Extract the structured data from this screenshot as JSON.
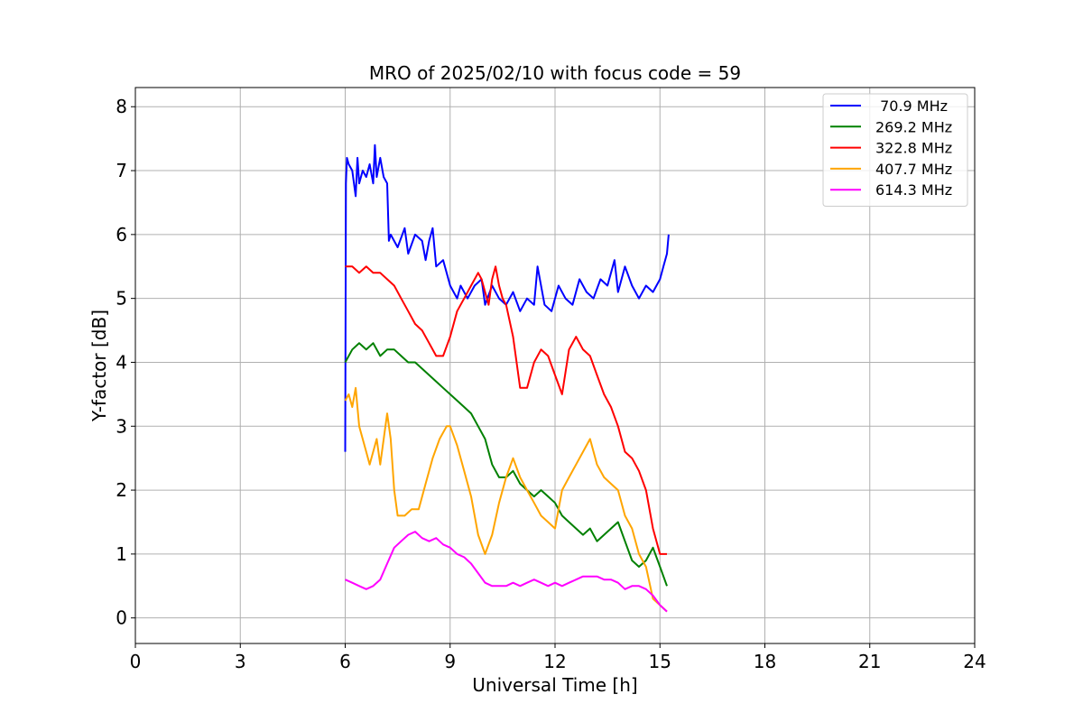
{
  "chart_data": {
    "type": "line",
    "title": "MRO of 2025/02/10 with focus code = 59",
    "xlabel": "Universal Time [h]",
    "ylabel": "Y-factor [dB]",
    "xlim": [
      0,
      24
    ],
    "ylim": [
      -0.4,
      8.3
    ],
    "xticks": [
      0,
      3,
      6,
      9,
      12,
      15,
      18,
      21,
      24
    ],
    "yticks": [
      0,
      1,
      2,
      3,
      4,
      5,
      6,
      7,
      8
    ],
    "grid": true,
    "legend_position": "top-right",
    "series": [
      {
        "name": " 70.9 MHz",
        "color": "#0000ff",
        "x": [
          6.0,
          6.02,
          6.05,
          6.1,
          6.2,
          6.3,
          6.35,
          6.4,
          6.5,
          6.6,
          6.7,
          6.8,
          6.85,
          6.9,
          7.0,
          7.1,
          7.2,
          7.25,
          7.3,
          7.5,
          7.7,
          7.8,
          8.0,
          8.2,
          8.3,
          8.4,
          8.5,
          8.6,
          8.8,
          9.0,
          9.2,
          9.3,
          9.5,
          9.7,
          9.9,
          10.0,
          10.2,
          10.4,
          10.6,
          10.8,
          11.0,
          11.2,
          11.4,
          11.5,
          11.7,
          11.9,
          12.1,
          12.3,
          12.5,
          12.7,
          12.9,
          13.1,
          13.3,
          13.5,
          13.7,
          13.8,
          14.0,
          14.2,
          14.4,
          14.6,
          14.8,
          15.0,
          15.1,
          15.2,
          15.25
        ],
        "y": [
          2.6,
          6.8,
          7.2,
          7.1,
          7.0,
          6.6,
          7.2,
          6.8,
          7.0,
          6.9,
          7.1,
          6.8,
          7.4,
          6.9,
          7.2,
          6.9,
          6.8,
          5.9,
          6.0,
          5.8,
          6.1,
          5.7,
          6.0,
          5.9,
          5.6,
          5.9,
          6.1,
          5.5,
          5.6,
          5.2,
          5.0,
          5.2,
          5.0,
          5.2,
          5.3,
          4.9,
          5.2,
          5.0,
          4.9,
          5.1,
          4.8,
          5.0,
          4.9,
          5.5,
          4.9,
          4.8,
          5.2,
          5.0,
          4.9,
          5.3,
          5.1,
          5.0,
          5.3,
          5.2,
          5.6,
          5.1,
          5.5,
          5.2,
          5.0,
          5.2,
          5.1,
          5.3,
          5.5,
          5.7,
          6.0
        ]
      },
      {
        "name": "269.2 MHz",
        "color": "#008000",
        "x": [
          6.0,
          6.2,
          6.4,
          6.6,
          6.8,
          7.0,
          7.2,
          7.4,
          7.6,
          7.8,
          8.0,
          8.2,
          8.4,
          8.6,
          8.8,
          9.0,
          9.2,
          9.4,
          9.6,
          9.8,
          10.0,
          10.2,
          10.4,
          10.6,
          10.8,
          11.0,
          11.2,
          11.4,
          11.6,
          11.8,
          12.0,
          12.2,
          12.4,
          12.6,
          12.8,
          13.0,
          13.2,
          13.4,
          13.6,
          13.8,
          14.0,
          14.2,
          14.4,
          14.6,
          14.8,
          15.0,
          15.2
        ],
        "y": [
          4.0,
          4.2,
          4.3,
          4.2,
          4.3,
          4.1,
          4.2,
          4.2,
          4.1,
          4.0,
          4.0,
          3.9,
          3.8,
          3.7,
          3.6,
          3.5,
          3.4,
          3.3,
          3.2,
          3.0,
          2.8,
          2.4,
          2.2,
          2.2,
          2.3,
          2.1,
          2.0,
          1.9,
          2.0,
          1.9,
          1.8,
          1.6,
          1.5,
          1.4,
          1.3,
          1.4,
          1.2,
          1.3,
          1.4,
          1.5,
          1.2,
          0.9,
          0.8,
          0.9,
          1.1,
          0.8,
          0.5
        ]
      },
      {
        "name": "322.8 MHz",
        "color": "#ff0000",
        "x": [
          6.0,
          6.2,
          6.4,
          6.6,
          6.8,
          7.0,
          7.2,
          7.4,
          7.6,
          7.8,
          8.0,
          8.2,
          8.4,
          8.6,
          8.8,
          9.0,
          9.2,
          9.4,
          9.6,
          9.8,
          9.9,
          10.0,
          10.1,
          10.2,
          10.3,
          10.4,
          10.5,
          10.6,
          10.8,
          11.0,
          11.2,
          11.4,
          11.6,
          11.8,
          12.0,
          12.2,
          12.4,
          12.6,
          12.8,
          13.0,
          13.2,
          13.4,
          13.6,
          13.8,
          14.0,
          14.2,
          14.4,
          14.6,
          14.8,
          15.0,
          15.2
        ],
        "y": [
          5.5,
          5.5,
          5.4,
          5.5,
          5.4,
          5.4,
          5.3,
          5.2,
          5.0,
          4.8,
          4.6,
          4.5,
          4.3,
          4.1,
          4.1,
          4.4,
          4.8,
          5.0,
          5.2,
          5.4,
          5.3,
          5.1,
          4.9,
          5.3,
          5.5,
          5.2,
          5.0,
          4.9,
          4.4,
          3.6,
          3.6,
          4.0,
          4.2,
          4.1,
          3.8,
          3.5,
          4.2,
          4.4,
          4.2,
          4.1,
          3.8,
          3.5,
          3.3,
          3.0,
          2.6,
          2.5,
          2.3,
          2.0,
          1.4,
          1.0,
          1.0
        ]
      },
      {
        "name": "407.7 MHz",
        "color": "#ffa500",
        "x": [
          6.0,
          6.1,
          6.2,
          6.3,
          6.4,
          6.6,
          6.7,
          6.9,
          7.0,
          7.2,
          7.3,
          7.4,
          7.5,
          7.7,
          7.9,
          8.1,
          8.3,
          8.5,
          8.7,
          8.9,
          9.0,
          9.2,
          9.4,
          9.6,
          9.8,
          10.0,
          10.2,
          10.4,
          10.6,
          10.8,
          11.0,
          11.2,
          11.4,
          11.6,
          11.8,
          12.0,
          12.2,
          12.4,
          12.6,
          12.8,
          13.0,
          13.2,
          13.4,
          13.6,
          13.8,
          14.0,
          14.2,
          14.4,
          14.6,
          14.8,
          15.0,
          15.2
        ],
        "y": [
          3.4,
          3.5,
          3.3,
          3.6,
          3.0,
          2.6,
          2.4,
          2.8,
          2.4,
          3.2,
          2.8,
          2.0,
          1.6,
          1.6,
          1.7,
          1.7,
          2.1,
          2.5,
          2.8,
          3.0,
          3.0,
          2.7,
          2.3,
          1.9,
          1.3,
          1.0,
          1.3,
          1.8,
          2.2,
          2.5,
          2.2,
          2.0,
          1.8,
          1.6,
          1.5,
          1.4,
          2.0,
          2.2,
          2.4,
          2.6,
          2.8,
          2.4,
          2.2,
          2.1,
          2.0,
          1.6,
          1.4,
          1.0,
          0.8,
          0.3,
          0.2,
          0.1
        ]
      },
      {
        "name": "614.3 MHz",
        "color": "#ff00ff",
        "x": [
          6.0,
          6.2,
          6.4,
          6.6,
          6.8,
          7.0,
          7.2,
          7.4,
          7.6,
          7.8,
          8.0,
          8.2,
          8.4,
          8.6,
          8.8,
          9.0,
          9.2,
          9.4,
          9.6,
          9.8,
          10.0,
          10.2,
          10.4,
          10.6,
          10.8,
          11.0,
          11.2,
          11.4,
          11.6,
          11.8,
          12.0,
          12.2,
          12.4,
          12.6,
          12.8,
          13.0,
          13.2,
          13.4,
          13.6,
          13.8,
          14.0,
          14.2,
          14.4,
          14.6,
          14.8,
          15.0,
          15.2
        ],
        "y": [
          0.6,
          0.55,
          0.5,
          0.45,
          0.5,
          0.6,
          0.85,
          1.1,
          1.2,
          1.3,
          1.35,
          1.25,
          1.2,
          1.25,
          1.15,
          1.1,
          1.0,
          0.95,
          0.85,
          0.7,
          0.55,
          0.5,
          0.5,
          0.5,
          0.55,
          0.5,
          0.55,
          0.6,
          0.55,
          0.5,
          0.55,
          0.5,
          0.55,
          0.6,
          0.65,
          0.65,
          0.65,
          0.6,
          0.6,
          0.55,
          0.45,
          0.5,
          0.5,
          0.45,
          0.35,
          0.2,
          0.1
        ]
      }
    ]
  }
}
